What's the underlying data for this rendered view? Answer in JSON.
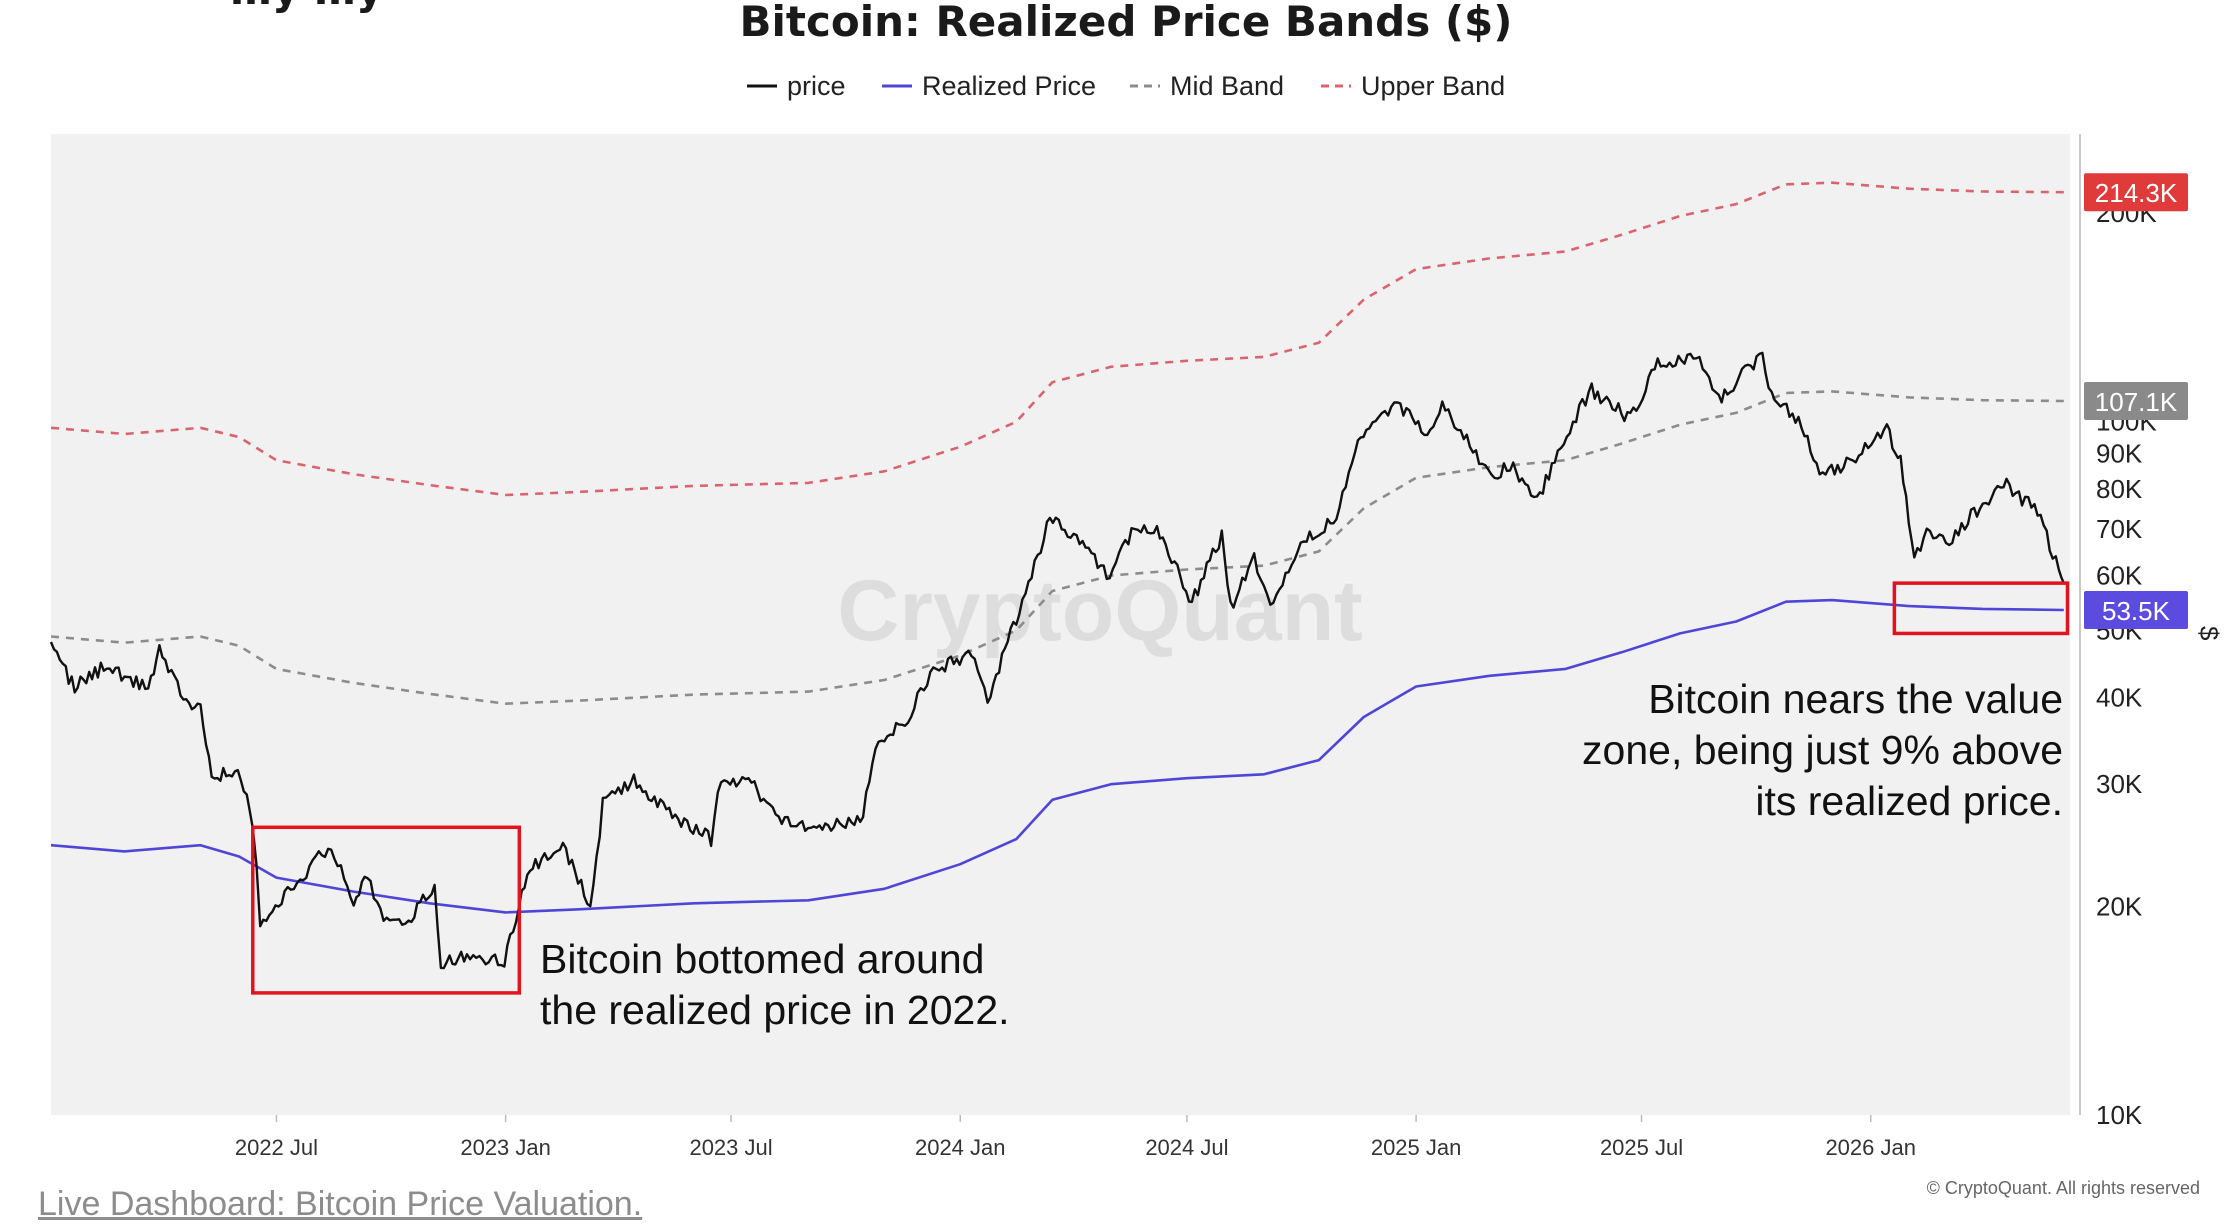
{
  "header": {
    "partial_title": "…y …y",
    "title": "Bitcoin: Realized Price Bands ($)"
  },
  "watermark": "CryptoQuant",
  "footer": {
    "link_text": "Live Dashboard: Bitcoin Price Valuation.",
    "copyright": "© CryptoQuant. All rights reserved"
  },
  "colors": {
    "price": "#111111",
    "realized": "#4f46d8",
    "mid": "#8c8c8c",
    "upper": "#d9646e",
    "highlight_box": "#e0141e",
    "plot_bg": "#f1f1f1",
    "tag_upper": "#e03a3a",
    "tag_mid": "#8a8a8a",
    "tag_realized": "#5b4bdf"
  },
  "chart_data": {
    "type": "line",
    "title": "Bitcoin: Realized Price Bands ($)",
    "y_scale": "log",
    "ylim": [
      10000,
      260000
    ],
    "xlim": [
      "2022-01-01",
      "2026-06-10"
    ],
    "grid": false,
    "legend_position": "top-center",
    "x_ticks": [
      "2022 Jul",
      "2023 Jan",
      "2023 Jul",
      "2024 Jan",
      "2024 Jul",
      "2025 Jan",
      "2025 Jul",
      "2026 Jan"
    ],
    "y_ticks": [
      "10K",
      "20K",
      "30K",
      "40K",
      "50K",
      "60K",
      "70K",
      "80K",
      "90K",
      "100K",
      "200K"
    ],
    "y_unit_label": "$",
    "series": [
      {
        "name": "price",
        "style": "solid",
        "points": [
          [
            "2022-01-01",
            47000
          ],
          [
            "2022-01-20",
            41500
          ],
          [
            "2022-02-10",
            44000
          ],
          [
            "2022-03-01",
            43000
          ],
          [
            "2022-03-20",
            41000
          ],
          [
            "2022-03-29",
            47500
          ],
          [
            "2022-04-15",
            40500
          ],
          [
            "2022-05-01",
            38500
          ],
          [
            "2022-05-10",
            30500
          ],
          [
            "2022-05-31",
            31500
          ],
          [
            "2022-06-12",
            26500
          ],
          [
            "2022-06-18",
            19000
          ],
          [
            "2022-07-10",
            21000
          ],
          [
            "2022-07-25",
            22500
          ],
          [
            "2022-08-14",
            24500
          ],
          [
            "2022-09-01",
            20000
          ],
          [
            "2022-09-12",
            22400
          ],
          [
            "2022-09-25",
            19000
          ],
          [
            "2022-10-15",
            19200
          ],
          [
            "2022-11-05",
            21300
          ],
          [
            "2022-11-10",
            16500
          ],
          [
            "2022-12-01",
            17100
          ],
          [
            "2022-12-31",
            16500
          ],
          [
            "2023-01-14",
            21000
          ],
          [
            "2023-01-25",
            23000
          ],
          [
            "2023-02-16",
            24500
          ],
          [
            "2023-03-10",
            20000
          ],
          [
            "2023-03-20",
            28000
          ],
          [
            "2023-04-14",
            30500
          ],
          [
            "2023-05-10",
            27500
          ],
          [
            "2023-06-15",
            25000
          ],
          [
            "2023-06-23",
            30500
          ],
          [
            "2023-07-15",
            30300
          ],
          [
            "2023-08-18",
            26000
          ],
          [
            "2023-09-10",
            25800
          ],
          [
            "2023-10-15",
            27000
          ],
          [
            "2023-10-25",
            34500
          ],
          [
            "2023-11-20",
            37500
          ],
          [
            "2023-12-08",
            43500
          ],
          [
            "2024-01-10",
            46500
          ],
          [
            "2024-01-23",
            39500
          ],
          [
            "2024-02-15",
            52000
          ],
          [
            "2024-03-13",
            72500
          ],
          [
            "2024-04-01",
            68000
          ],
          [
            "2024-04-30",
            60000
          ],
          [
            "2024-05-20",
            71000
          ],
          [
            "2024-06-07",
            70000
          ],
          [
            "2024-07-05",
            55000
          ],
          [
            "2024-07-29",
            68500
          ],
          [
            "2024-08-05",
            54000
          ],
          [
            "2024-08-24",
            64000
          ],
          [
            "2024-09-06",
            53500
          ],
          [
            "2024-09-28",
            66000
          ],
          [
            "2024-10-29",
            72500
          ],
          [
            "2024-11-13",
            90000
          ],
          [
            "2024-11-22",
            99000
          ],
          [
            "2024-12-17",
            106500
          ],
          [
            "2025-01-10",
            94500
          ],
          [
            "2025-01-22",
            106000
          ],
          [
            "2025-02-28",
            84000
          ],
          [
            "2025-03-20",
            86000
          ],
          [
            "2025-04-08",
            76500
          ],
          [
            "2025-05-02",
            96500
          ],
          [
            "2025-05-22",
            111000
          ],
          [
            "2025-06-22",
            101000
          ],
          [
            "2025-07-14",
            121000
          ],
          [
            "2025-08-14",
            124000
          ],
          [
            "2025-09-01",
            108000
          ],
          [
            "2025-10-06",
            125000
          ],
          [
            "2025-10-11",
            111000
          ],
          [
            "2025-11-04",
            101000
          ],
          [
            "2025-11-21",
            84000
          ],
          [
            "2025-12-15",
            87000
          ],
          [
            "2026-01-14",
            97000
          ],
          [
            "2026-01-25",
            88000
          ],
          [
            "2026-02-05",
            64000
          ],
          [
            "2026-02-15",
            69000
          ],
          [
            "2026-03-05",
            67000
          ],
          [
            "2026-03-25",
            74000
          ],
          [
            "2026-04-20",
            81000
          ],
          [
            "2026-05-15",
            74000
          ],
          [
            "2026-06-01",
            61000
          ],
          [
            "2026-06-05",
            58500
          ]
        ]
      },
      {
        "name": "Realized Price",
        "style": "solid",
        "points": [
          [
            "2022-01-01",
            24500
          ],
          [
            "2022-03-01",
            24000
          ],
          [
            "2022-05-01",
            24500
          ],
          [
            "2022-06-01",
            23600
          ],
          [
            "2022-07-01",
            22000
          ],
          [
            "2022-09-01",
            21000
          ],
          [
            "2022-11-01",
            20200
          ],
          [
            "2023-01-01",
            19600
          ],
          [
            "2023-03-01",
            19800
          ],
          [
            "2023-06-01",
            20200
          ],
          [
            "2023-09-01",
            20400
          ],
          [
            "2023-11-01",
            21200
          ],
          [
            "2024-01-01",
            23000
          ],
          [
            "2024-02-15",
            25000
          ],
          [
            "2024-03-15",
            28500
          ],
          [
            "2024-05-01",
            30000
          ],
          [
            "2024-07-01",
            30600
          ],
          [
            "2024-09-01",
            31000
          ],
          [
            "2024-10-15",
            32500
          ],
          [
            "2024-11-20",
            37500
          ],
          [
            "2025-01-01",
            41500
          ],
          [
            "2025-03-01",
            43000
          ],
          [
            "2025-05-01",
            44000
          ],
          [
            "2025-06-15",
            46500
          ],
          [
            "2025-08-01",
            49500
          ],
          [
            "2025-09-15",
            51500
          ],
          [
            "2025-10-25",
            55000
          ],
          [
            "2025-12-01",
            55300
          ],
          [
            "2026-02-01",
            54200
          ],
          [
            "2026-04-01",
            53700
          ],
          [
            "2026-06-05",
            53500
          ]
        ]
      },
      {
        "name": "Mid Band",
        "style": "dashed",
        "points": [
          [
            "2022-01-01",
            49000
          ],
          [
            "2022-03-01",
            48000
          ],
          [
            "2022-05-01",
            49000
          ],
          [
            "2022-06-01",
            47500
          ],
          [
            "2022-07-01",
            44000
          ],
          [
            "2022-09-01",
            42000
          ],
          [
            "2022-11-01",
            40500
          ],
          [
            "2023-01-01",
            39200
          ],
          [
            "2023-03-01",
            39600
          ],
          [
            "2023-06-01",
            40400
          ],
          [
            "2023-09-01",
            40800
          ],
          [
            "2023-11-01",
            42400
          ],
          [
            "2024-01-01",
            46000
          ],
          [
            "2024-02-15",
            50000
          ],
          [
            "2024-03-15",
            57000
          ],
          [
            "2024-05-01",
            60000
          ],
          [
            "2024-07-01",
            61200
          ],
          [
            "2024-09-01",
            62000
          ],
          [
            "2024-10-15",
            65000
          ],
          [
            "2024-11-20",
            75000
          ],
          [
            "2025-01-01",
            83000
          ],
          [
            "2025-03-01",
            86000
          ],
          [
            "2025-05-01",
            88000
          ],
          [
            "2025-06-15",
            93000
          ],
          [
            "2025-08-01",
            99000
          ],
          [
            "2025-09-15",
            103000
          ],
          [
            "2025-10-25",
            110000
          ],
          [
            "2025-12-01",
            110600
          ],
          [
            "2026-02-01",
            108400
          ],
          [
            "2026-04-01",
            107400
          ],
          [
            "2026-06-05",
            107100
          ]
        ]
      },
      {
        "name": "Upper Band",
        "style": "dashed",
        "points": [
          [
            "2022-01-01",
            98000
          ],
          [
            "2022-03-01",
            96000
          ],
          [
            "2022-05-01",
            98000
          ],
          [
            "2022-06-01",
            95000
          ],
          [
            "2022-07-01",
            88000
          ],
          [
            "2022-09-01",
            84000
          ],
          [
            "2022-11-01",
            81000
          ],
          [
            "2023-01-01",
            78400
          ],
          [
            "2023-03-01",
            79200
          ],
          [
            "2023-06-01",
            80800
          ],
          [
            "2023-09-01",
            81600
          ],
          [
            "2023-11-01",
            84800
          ],
          [
            "2024-01-01",
            92000
          ],
          [
            "2024-02-15",
            100000
          ],
          [
            "2024-03-15",
            114000
          ],
          [
            "2024-05-01",
            120000
          ],
          [
            "2024-07-01",
            122400
          ],
          [
            "2024-09-01",
            124000
          ],
          [
            "2024-10-15",
            130000
          ],
          [
            "2024-11-20",
            150000
          ],
          [
            "2025-01-01",
            166000
          ],
          [
            "2025-03-01",
            172000
          ],
          [
            "2025-05-01",
            176000
          ],
          [
            "2025-06-15",
            186000
          ],
          [
            "2025-08-01",
            198000
          ],
          [
            "2025-09-15",
            206000
          ],
          [
            "2025-10-25",
            220000
          ],
          [
            "2025-12-01",
            221200
          ],
          [
            "2026-02-01",
            216800
          ],
          [
            "2026-04-01",
            214800
          ],
          [
            "2026-06-05",
            214300
          ]
        ]
      }
    ],
    "last_value_tags": [
      {
        "series": "Upper Band",
        "label": "214.3K",
        "value": 214300
      },
      {
        "series": "Mid Band",
        "label": "107.1K",
        "value": 107100
      },
      {
        "series": "Realized Price",
        "label": "53.5K",
        "value": 53500
      }
    ],
    "annotations": [
      {
        "text_lines": [
          "Bitcoin bottomed around",
          "the realized price in 2022."
        ],
        "box": {
          "x_from": "2022-06-12",
          "x_to": "2023-01-12",
          "y_from": 15000,
          "y_to": 26000
        }
      },
      {
        "text_lines": [
          "Bitcoin nears the value",
          "zone, being just 9% above",
          "its realized price."
        ],
        "box": {
          "x_from": "2026-01-20",
          "x_to": "2026-06-08",
          "y_from": 49500,
          "y_to": 58500
        }
      }
    ]
  }
}
